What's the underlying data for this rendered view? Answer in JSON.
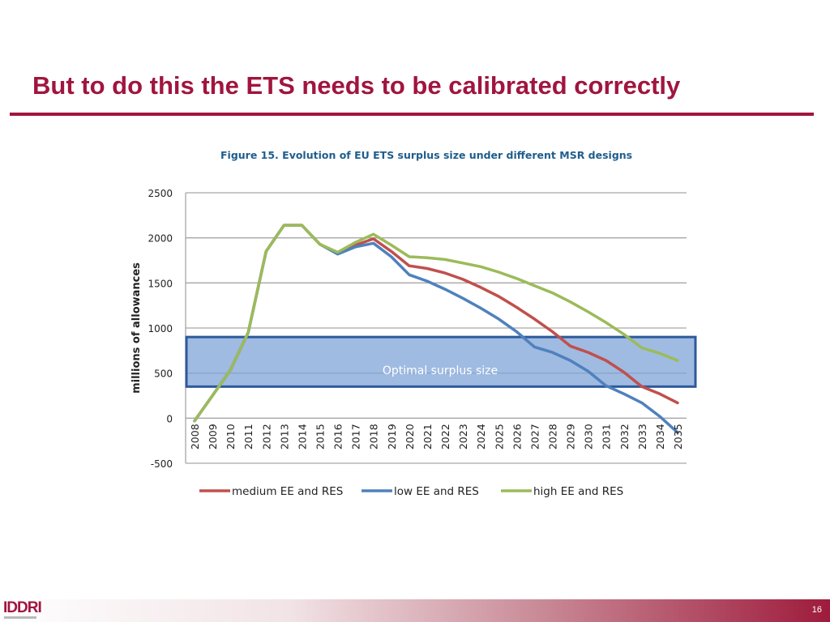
{
  "slide": {
    "title": "But to do this the ETS needs to be calibrated correctly",
    "logo": "IDDRI",
    "page_number": "16",
    "accent_color": "#a0153e"
  },
  "chart_data": {
    "type": "line",
    "title": "Figure 15. Evolution of EU ETS surplus size under different MSR designs",
    "xlabel": "",
    "ylabel": "millions of allowances",
    "x": [
      2008,
      2009,
      2010,
      2011,
      2012,
      2013,
      2014,
      2015,
      2016,
      2017,
      2018,
      2019,
      2020,
      2021,
      2022,
      2023,
      2024,
      2025,
      2026,
      2027,
      2028,
      2029,
      2030,
      2031,
      2032,
      2033,
      2034,
      2035
    ],
    "ylim": [
      -500,
      2500
    ],
    "yticks": [
      -500,
      0,
      500,
      1000,
      1500,
      2000,
      2500
    ],
    "grid": true,
    "legend_position": "bottom",
    "series": [
      {
        "name": "medium EE and RES",
        "color": "#c0504d",
        "values": [
          -30,
          250,
          530,
          950,
          1850,
          2140,
          2140,
          1930,
          1830,
          1920,
          1990,
          1850,
          1690,
          1660,
          1610,
          1540,
          1450,
          1350,
          1230,
          1100,
          960,
          800,
          730,
          640,
          510,
          350,
          270,
          170
        ]
      },
      {
        "name": "low EE and RES",
        "color": "#4f81bd",
        "values": [
          -30,
          250,
          530,
          950,
          1850,
          2140,
          2140,
          1930,
          1820,
          1900,
          1940,
          1790,
          1590,
          1520,
          1430,
          1330,
          1220,
          1100,
          960,
          790,
          730,
          640,
          520,
          360,
          270,
          170,
          20,
          -160
        ]
      },
      {
        "name": "high EE and RES",
        "color": "#9bbb59",
        "values": [
          -30,
          250,
          530,
          950,
          1850,
          2140,
          2140,
          1930,
          1840,
          1950,
          2040,
          1920,
          1790,
          1780,
          1760,
          1720,
          1680,
          1620,
          1550,
          1470,
          1390,
          1290,
          1180,
          1060,
          930,
          780,
          720,
          640
        ]
      }
    ],
    "annotation": {
      "label": "Optimal surplus size",
      "band": [
        350,
        900
      ],
      "fill": "#7fa4d8",
      "border": "#2e5a9a"
    }
  }
}
